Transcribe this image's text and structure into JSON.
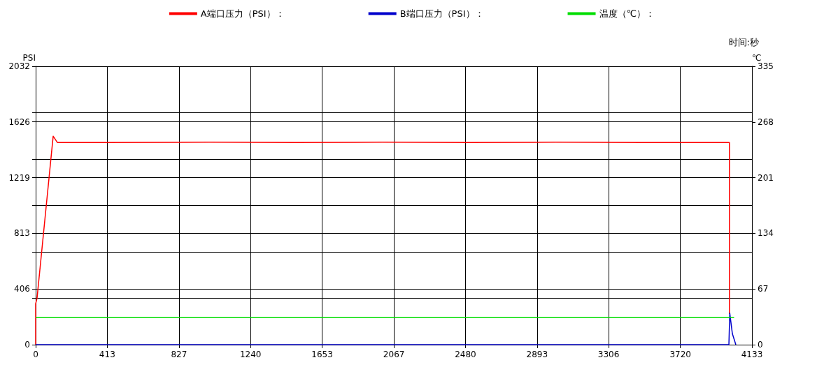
{
  "chart_data": {
    "type": "line",
    "xlabel": "时间:秒",
    "ylabel": "PSI",
    "y2label": "℃",
    "xlim": [
      0,
      4133
    ],
    "xticks": [
      0,
      413,
      827,
      1240,
      1653,
      2067,
      2480,
      2893,
      3306,
      3720,
      4133
    ],
    "ylim": [
      0,
      2032
    ],
    "yticks": [
      0,
      {
        "value": 338.7,
        "label": null
      },
      406,
      {
        "value": 677.3,
        "label": null
      },
      813,
      {
        "value": 1016,
        "label": null
      },
      1219,
      {
        "value": 1354.7,
        "label": null
      },
      1626,
      {
        "value": 1693.3,
        "label": null
      },
      2032
    ],
    "y2lim": [
      0,
      335
    ],
    "y2ticks": [
      0,
      67,
      134,
      201,
      268,
      335
    ],
    "grid": true,
    "legend": "top",
    "marker": "none",
    "line_style": "solid",
    "series": [
      {
        "name": "A端口压力（PSI）：",
        "color": "#ff0000",
        "x": [
          0,
          0,
          8,
          101,
          125,
          400,
          1000,
          1500,
          2000,
          2500,
          3000,
          3500,
          4003,
          4003
        ],
        "values": [
          0,
          300,
          340,
          1522,
          1476,
          1476,
          1478,
          1476,
          1478,
          1476,
          1478,
          1476,
          1476,
          224
        ]
      },
      {
        "name": "B端口压力（PSI）：",
        "color": "#0000cc",
        "x": [
          0,
          1000,
          2000,
          3000,
          4000,
          4005,
          4020,
          4040
        ],
        "values": [
          0,
          0,
          0,
          0,
          0,
          230,
          80,
          0
        ]
      },
      {
        "name": "温度（℃）：",
        "color": "#00dd00",
        "axis": "y2",
        "x": [
          0,
          413,
          1000,
          1500,
          2000,
          2500,
          3000,
          3500,
          4030
        ],
        "values": [
          32.5,
          32.5,
          32.5,
          32.5,
          32.5,
          32.5,
          32.5,
          32.5,
          32.5
        ]
      }
    ]
  }
}
